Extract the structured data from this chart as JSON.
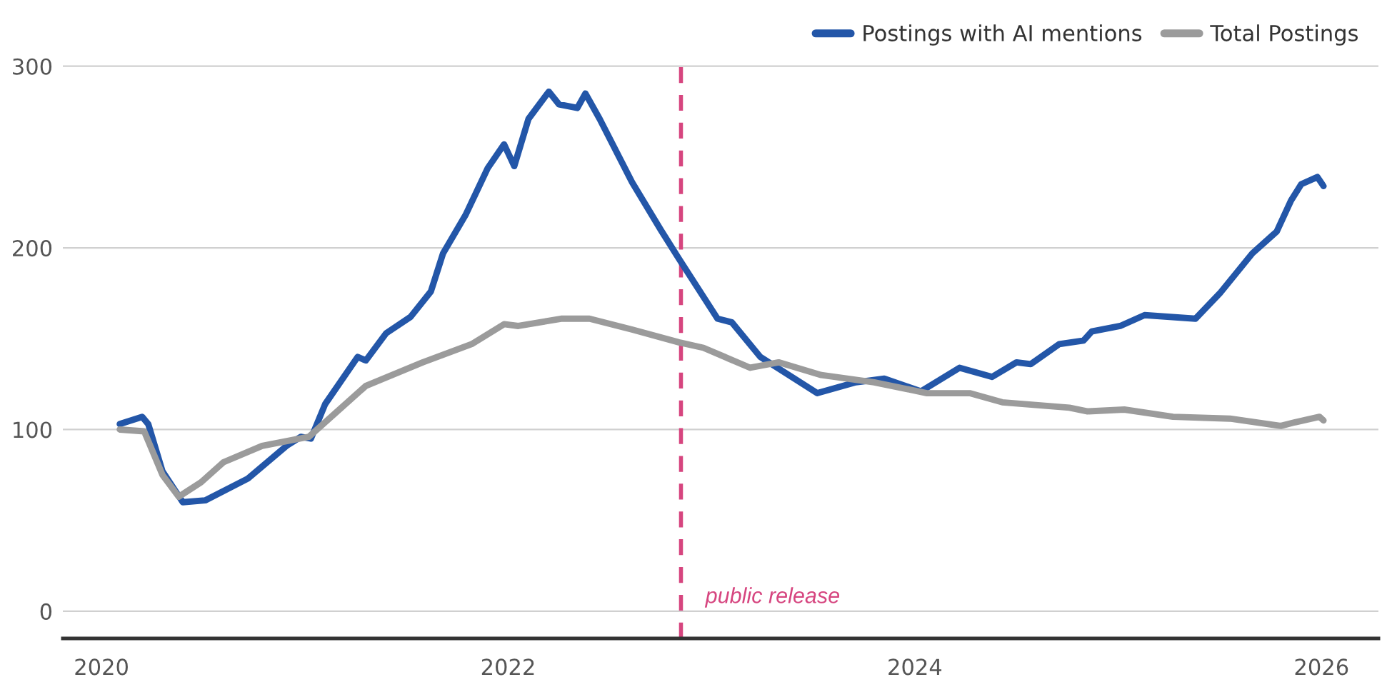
{
  "chart_data": {
    "type": "line",
    "xlim": [
      2019.81,
      2026.28
    ],
    "ylim": [
      -15,
      305
    ],
    "xticks": [
      2020,
      2022,
      2024,
      2026
    ],
    "yticks": [
      0,
      100,
      200,
      300
    ],
    "grid": "y",
    "legend": "top right",
    "marker": "none",
    "line_style": "solid",
    "series": [
      {
        "name": "Postings with AI mentions",
        "color": "#2356a8",
        "x": [
          2020.09,
          2020.2,
          2020.23,
          2020.3,
          2020.4,
          2020.51,
          2020.72,
          2020.91,
          2020.98,
          2021.03,
          2021.1,
          2021.26,
          2021.3,
          2021.4,
          2021.52,
          2021.62,
          2021.68,
          2021.79,
          2021.9,
          2021.98,
          2022.03,
          2022.1,
          2022.2,
          2022.25,
          2022.34,
          2022.38,
          2022.45,
          2022.61,
          2022.75,
          2022.84,
          2023.03,
          2023.1,
          2023.24,
          2023.52,
          2023.71,
          2023.85,
          2024.03,
          2024.22,
          2024.38,
          2024.5,
          2024.57,
          2024.71,
          2024.83,
          2024.87,
          2025.01,
          2025.13,
          2025.38,
          2025.5,
          2025.66,
          2025.78,
          2025.85,
          2025.9,
          2025.98,
          2026.01
        ],
        "values": [
          103,
          107,
          103,
          77,
          60,
          61,
          73,
          91,
          96,
          95,
          114,
          140,
          138,
          153,
          162,
          176,
          197,
          218,
          244,
          257,
          245,
          271,
          286,
          279,
          277,
          285,
          271,
          236,
          210,
          194,
          161,
          159,
          140,
          120,
          126,
          128,
          121,
          134,
          129,
          137,
          136,
          147,
          149,
          154,
          157,
          163,
          161,
          175,
          197,
          209,
          226,
          235,
          239,
          234
        ]
      },
      {
        "name": "Total Postings",
        "color": "#9b9b9b",
        "x": [
          2020.09,
          2020.21,
          2020.3,
          2020.38,
          2020.49,
          2020.6,
          2020.79,
          2021.02,
          2021.3,
          2021.58,
          2021.82,
          2021.98,
          2022.05,
          2022.26,
          2022.4,
          2022.61,
          2022.84,
          2022.96,
          2023.19,
          2023.33,
          2023.54,
          2023.8,
          2024.06,
          2024.27,
          2024.43,
          2024.76,
          2024.85,
          2025.03,
          2025.27,
          2025.55,
          2025.8,
          2025.87,
          2025.99,
          2026.01
        ],
        "values": [
          100,
          99,
          75,
          63,
          71,
          82,
          91,
          96,
          124,
          137,
          147,
          158,
          157,
          161,
          161,
          155,
          148,
          145,
          134,
          137,
          130,
          126,
          120,
          120,
          115,
          112,
          110,
          111,
          107,
          106,
          102,
          104,
          107,
          105
        ]
      }
    ],
    "ref_lines": [
      {
        "axis": "x",
        "value": 2022.85,
        "label": "public release",
        "color": "#d6457f",
        "line_style": "dashed"
      }
    ]
  }
}
